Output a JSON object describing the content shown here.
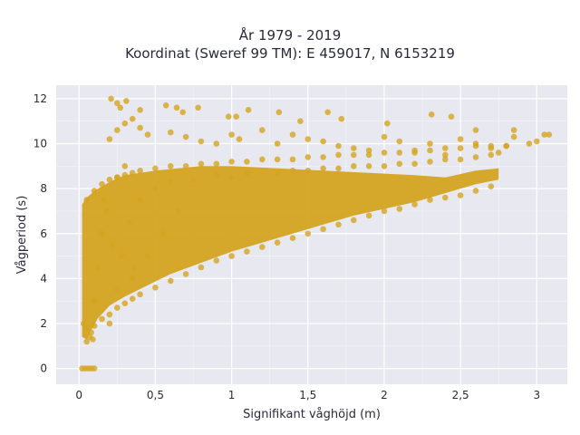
{
  "chart_data": {
    "type": "scatter",
    "title_lines": [
      "År 1979 - 2019",
      "Koordinat (Sweref 99 TM): E 459017, N 6153219"
    ],
    "xlabel": "Signifikant våghöjd (m)",
    "ylabel": "Vågperiod (s)",
    "xlim": [
      -0.15,
      3.2
    ],
    "ylim": [
      -0.7,
      12.6
    ],
    "x_ticks": [
      0,
      0.5,
      1,
      1.5,
      2,
      2.5,
      3
    ],
    "x_tick_labels": [
      "0",
      "0,5",
      "1",
      "1,5",
      "2",
      "2,5",
      "3"
    ],
    "y_ticks": [
      0,
      2,
      4,
      6,
      8,
      10,
      12
    ],
    "y_tick_labels": [
      "0",
      "2",
      "4",
      "6",
      "8",
      "10",
      "12"
    ],
    "grid": true,
    "marker_color": "#D4A421",
    "background_color": "#E8E8F0",
    "series": [
      {
        "x": [
          0.02,
          0.04,
          0.06,
          0.08,
          0.1,
          0.05,
          0.07,
          0.09,
          0.03,
          0.05,
          0.08,
          0.1,
          0.15,
          0.2,
          0.25,
          0.3,
          0.35,
          0.4,
          0.5,
          0.6,
          0.7,
          0.8,
          0.9,
          1.0,
          1.1,
          1.2,
          1.3,
          1.4,
          1.5,
          1.6,
          1.7,
          1.8,
          1.9,
          2.0,
          2.1,
          2.2,
          2.3,
          2.4,
          2.5,
          2.6,
          2.7,
          0.05,
          0.1,
          0.15,
          0.2,
          0.25,
          0.3,
          0.35,
          0.4,
          0.5,
          0.6,
          0.7,
          0.8,
          0.9,
          1.0,
          1.1,
          1.2,
          1.3,
          1.4,
          1.5,
          1.6,
          1.7,
          1.8,
          1.9,
          2.0,
          2.1,
          2.2,
          2.3,
          2.4,
          2.5,
          2.6,
          2.7,
          2.8,
          0.2,
          0.25,
          0.3,
          0.35,
          0.4,
          0.45,
          0.6,
          0.7,
          0.8,
          0.9,
          1.0,
          1.05,
          1.2,
          1.3,
          1.4,
          1.5,
          1.6,
          1.7,
          1.8,
          1.9,
          2.0,
          2.1,
          2.2,
          2.3,
          2.4,
          2.5,
          2.6,
          2.7,
          2.8,
          2.85,
          2.95,
          3.05,
          3.08,
          0.15,
          0.18,
          0.22,
          0.25,
          0.28,
          0.3,
          0.33,
          0.36,
          0.4,
          0.5,
          0.6,
          0.75,
          0.9,
          1.0,
          1.1,
          1.3,
          1.4,
          1.5,
          1.6,
          1.7,
          1.8,
          1.9,
          2.0,
          2.1,
          2.2,
          2.3,
          2.4,
          2.5,
          2.6,
          2.7,
          2.75,
          0.21,
          0.25,
          0.27,
          0.31,
          0.4,
          0.57,
          0.64,
          0.68,
          0.78,
          0.98,
          1.03,
          1.11,
          1.31,
          1.45,
          1.63,
          1.72,
          2.02,
          2.31,
          2.44,
          2.6,
          2.85,
          3.0,
          0.1,
          0.12,
          0.14,
          0.16,
          0.2,
          0.25,
          0.35,
          0.45,
          0.55,
          0.65
        ],
        "y": [
          0.0,
          0.0,
          0.0,
          0.0,
          0.0,
          1.2,
          1.4,
          1.3,
          2.0,
          1.8,
          1.6,
          1.9,
          2.2,
          2.4,
          2.7,
          2.9,
          3.1,
          3.3,
          3.6,
          3.9,
          4.2,
          4.5,
          4.8,
          5.0,
          5.2,
          5.4,
          5.6,
          5.8,
          6.0,
          6.2,
          6.4,
          6.6,
          6.8,
          7.0,
          7.1,
          7.3,
          7.5,
          7.6,
          7.7,
          7.9,
          8.1,
          7.5,
          7.9,
          8.2,
          8.4,
          8.5,
          8.6,
          8.7,
          8.8,
          8.9,
          9.0,
          9.0,
          9.1,
          9.1,
          9.2,
          9.2,
          9.3,
          9.3,
          9.3,
          9.4,
          9.4,
          9.5,
          9.5,
          9.5,
          9.6,
          9.6,
          9.7,
          9.7,
          9.8,
          9.8,
          9.9,
          9.9,
          9.9,
          10.2,
          10.6,
          10.9,
          11.1,
          10.7,
          10.4,
          10.5,
          10.3,
          10.1,
          10.0,
          10.4,
          10.2,
          10.6,
          10.0,
          10.4,
          10.2,
          10.1,
          9.9,
          9.8,
          9.7,
          10.3,
          10.1,
          9.6,
          10.0,
          9.5,
          10.2,
          10.0,
          9.8,
          9.9,
          10.3,
          10.0,
          10.4,
          10.4,
          6.0,
          7.0,
          5.5,
          8.5,
          5.0,
          9.0,
          6.5,
          4.5,
          7.5,
          8.0,
          8.3,
          8.4,
          8.6,
          8.5,
          8.7,
          8.7,
          8.8,
          8.8,
          8.9,
          8.9,
          9.0,
          9.0,
          9.0,
          9.1,
          9.1,
          9.2,
          9.3,
          9.3,
          9.4,
          9.5,
          9.6,
          12.0,
          11.8,
          11.6,
          11.9,
          11.5,
          11.7,
          11.6,
          11.4,
          11.6,
          11.2,
          11.2,
          11.5,
          11.4,
          11.0,
          11.4,
          11.1,
          10.9,
          11.3,
          11.2,
          10.6,
          10.6,
          10.1,
          3.0,
          4.5,
          6.0,
          7.5,
          2.0,
          3.5,
          4.0,
          5.0,
          6.0,
          7.0
        ]
      }
    ]
  }
}
